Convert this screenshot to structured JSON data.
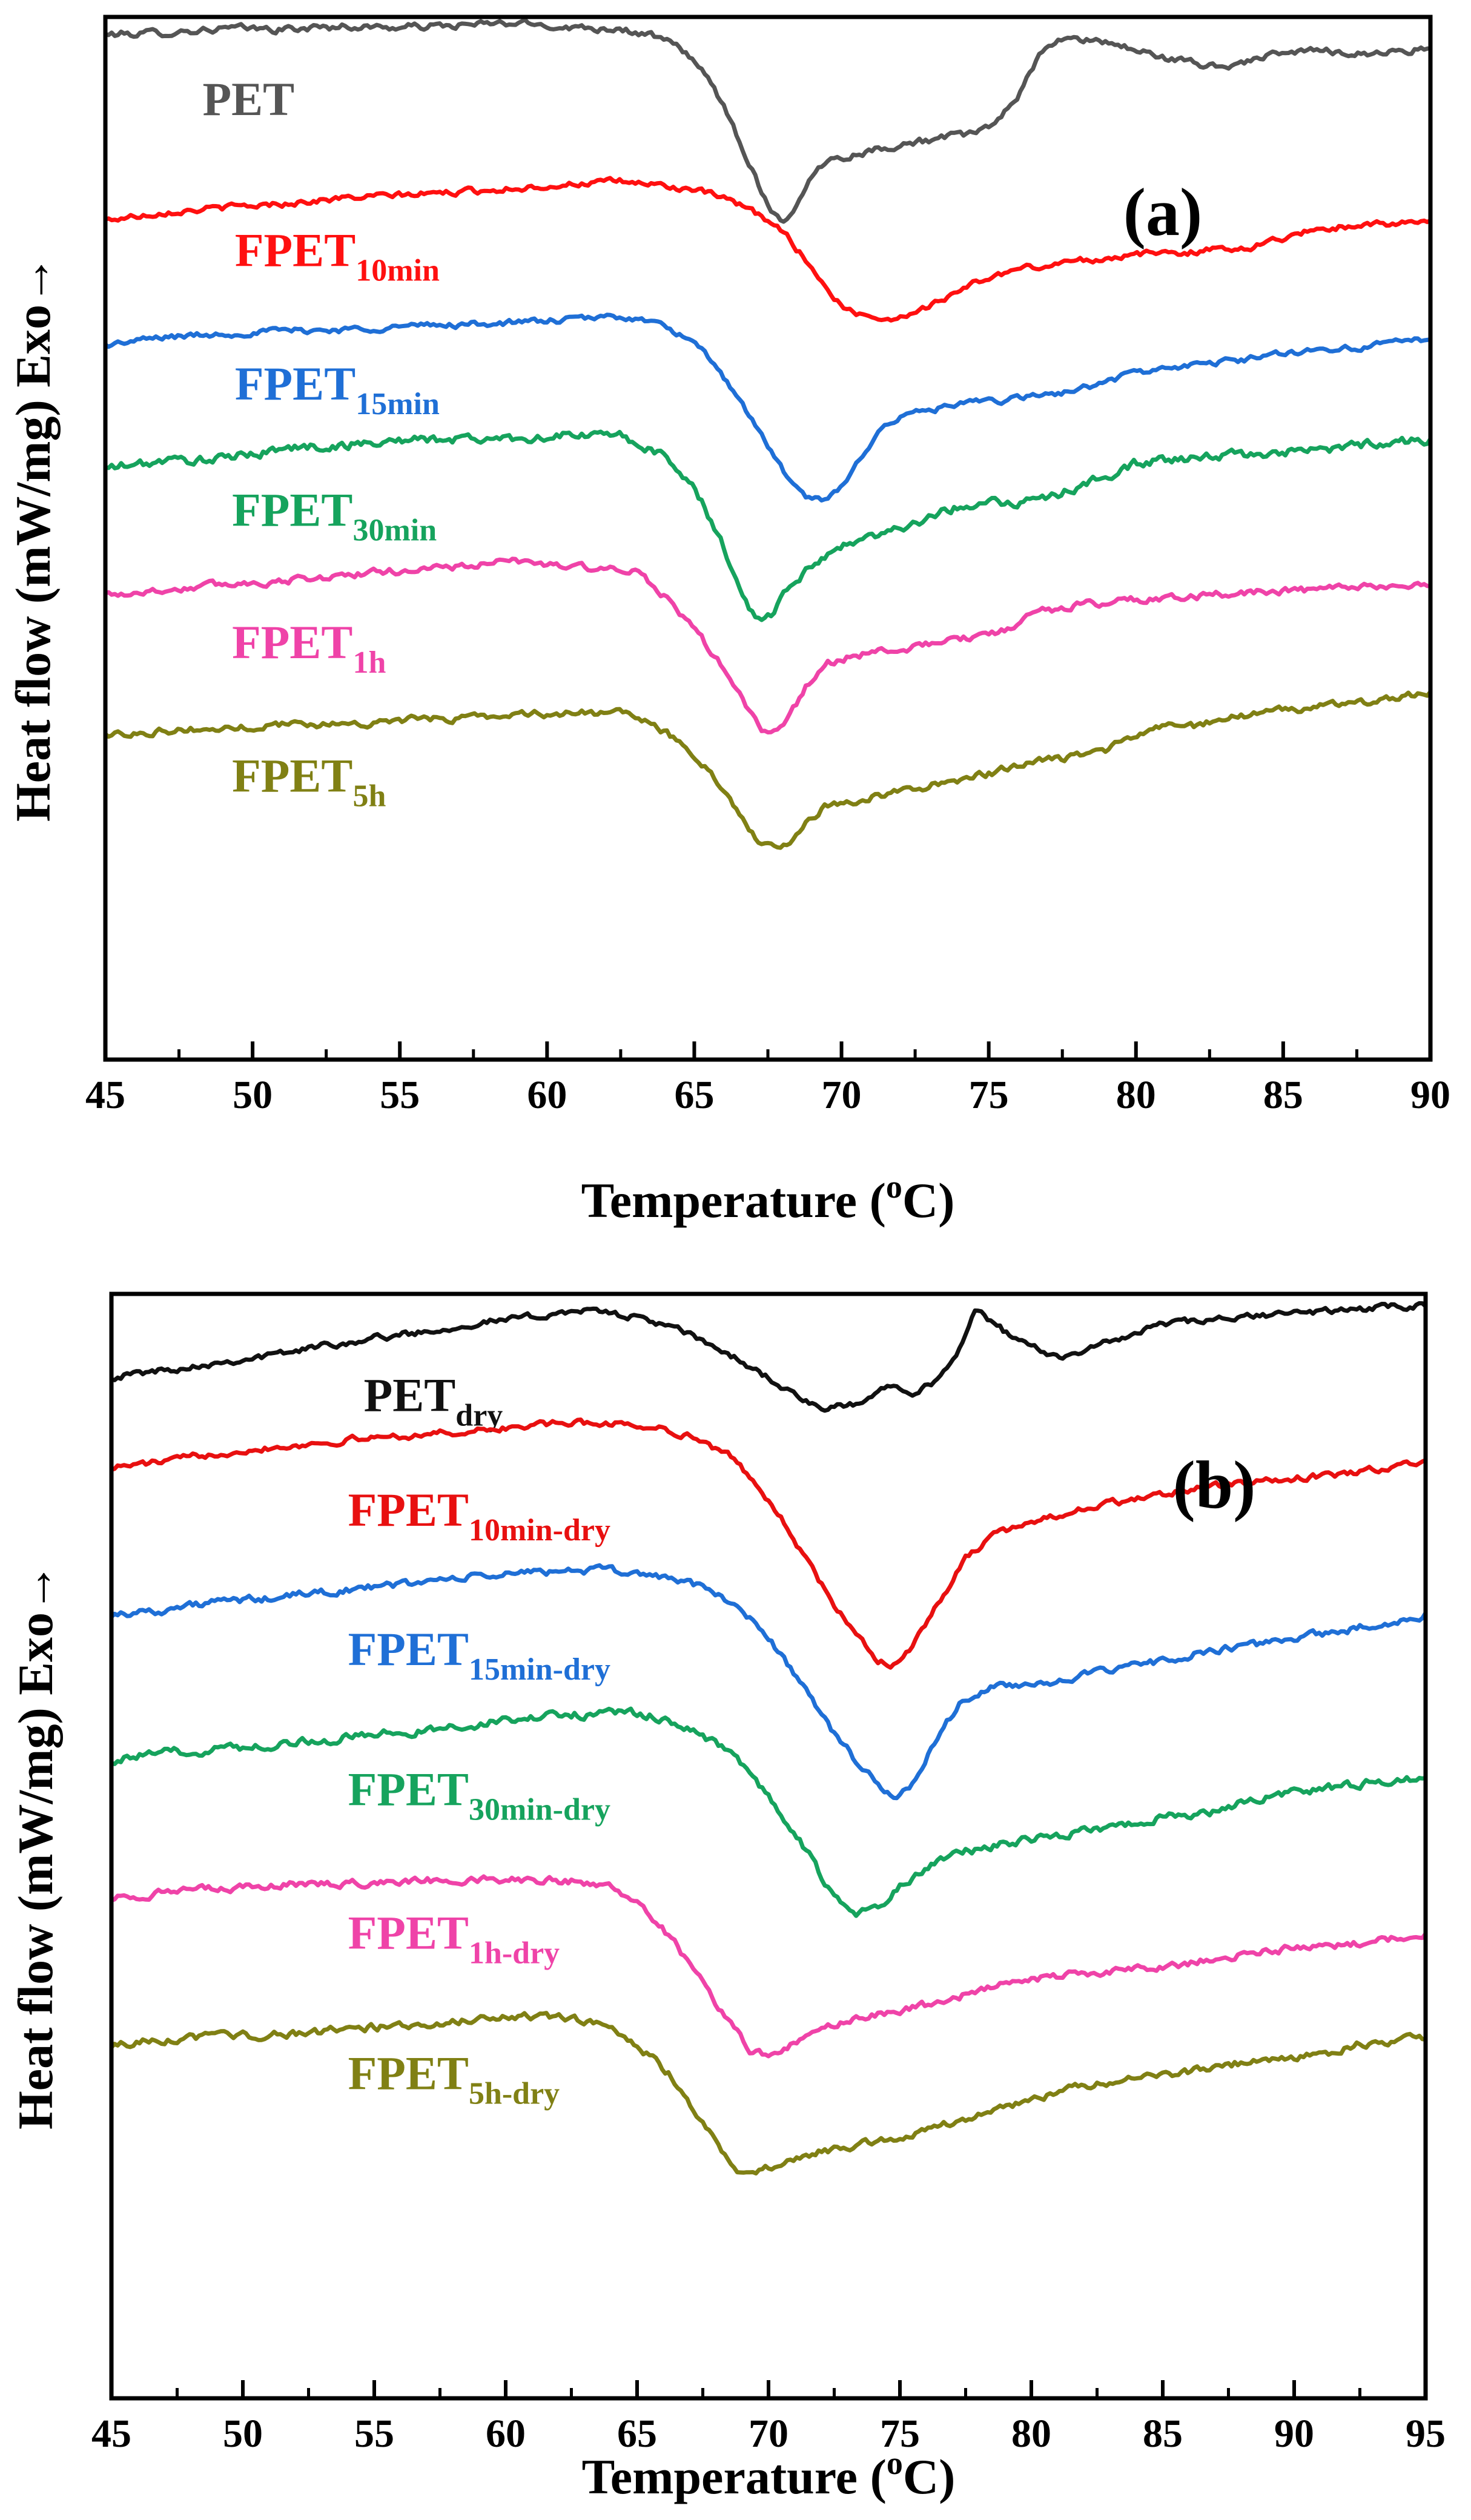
{
  "chart_data": [
    {
      "type": "line",
      "panel_label": "(a)",
      "xlabel": {
        "main": "Temperature (",
        "sup": "o",
        "end": "C)"
      },
      "ylabel": "Heat flow (mW/mg) Exo→",
      "xlim": [
        45,
        90
      ],
      "ylim": [
        0,
        100
      ],
      "x_ticks": [
        45,
        50,
        55,
        60,
        65,
        70,
        75,
        80,
        85,
        90
      ],
      "x_tick_labels": [
        "45",
        "50",
        "55",
        "60",
        "65",
        "70",
        "75",
        "80",
        "85",
        "90"
      ],
      "grid": false,
      "series": [
        {
          "name": "PET",
          "label_main": "PET",
          "label_sub": "",
          "color": "#555555",
          "label_x": 48.3,
          "label_y": 90.6,
          "x": [
            45,
            47,
            49,
            51,
            53,
            55,
            57,
            59,
            61,
            62.5,
            64,
            65,
            66,
            66.8,
            67.4,
            67.9,
            68.3,
            68.8,
            69.5,
            70.5,
            72,
            74,
            75,
            76,
            77,
            78,
            79,
            80,
            81,
            82,
            83,
            84,
            86,
            88,
            90
          ],
          "y": [
            98.3,
            98.5,
            98.9,
            98.8,
            99.1,
            99.0,
            99.2,
            99.4,
            99.0,
            98.9,
            97.8,
            96.0,
            91.5,
            86.5,
            82.5,
            80.5,
            81.0,
            84.0,
            86.3,
            86.9,
            87.8,
            88.6,
            89.2,
            92.5,
            97.5,
            97.9,
            97.6,
            96.8,
            96.1,
            95.5,
            95.2,
            96.0,
            96.8,
            96.5,
            97.0
          ],
          "noise": 0.35
        },
        {
          "name": "FPET10min",
          "label_main": "FPET",
          "label_sub": "10min",
          "color": "#ff1010",
          "label_x": 49.4,
          "label_y": 76.1,
          "x": [
            45,
            47,
            49,
            51,
            53,
            55,
            57,
            59,
            61,
            62.5,
            63.5,
            65,
            66,
            67,
            68,
            69,
            69.6,
            70.2,
            71,
            71.8,
            72.3,
            73,
            74,
            75,
            76,
            78,
            80,
            82,
            84,
            86,
            88,
            90
          ],
          "y": [
            80.5,
            81.3,
            81.7,
            82.1,
            82.6,
            82.9,
            83.2,
            83.6,
            84.0,
            84.2,
            84.0,
            83.4,
            82.6,
            81.3,
            79.5,
            76.0,
            73.5,
            71.8,
            71.3,
            71.0,
            71.6,
            72.3,
            73.8,
            75.0,
            75.8,
            76.6,
            77.2,
            77.5,
            78.0,
            79.6,
            80.2,
            80.2
          ],
          "noise": 0.3
        },
        {
          "name": "FPET15min",
          "label_main": "FPET",
          "label_sub": "15min",
          "color": "#1f6fd6",
          "label_x": 49.4,
          "label_y": 63.3,
          "x": [
            45,
            47,
            49,
            51,
            53,
            55,
            57,
            59,
            61,
            62.5,
            63.5,
            64.5,
            65.5,
            66.5,
            67.5,
            68.3,
            68.9,
            69.5,
            70.2,
            70.8,
            71.5,
            72.5,
            74,
            76,
            78,
            80,
            82,
            84,
            86,
            88,
            90
          ],
          "y": [
            68.5,
            69.3,
            69.6,
            69.9,
            70.0,
            70.3,
            70.5,
            70.7,
            71.0,
            71.3,
            70.8,
            69.6,
            67.3,
            63.5,
            58.8,
            55.2,
            53.8,
            53.5,
            55.5,
            58.5,
            61.0,
            62.1,
            62.8,
            63.4,
            64.2,
            65.9,
            66.6,
            67.3,
            68.1,
            68.4,
            69.2
          ],
          "noise": 0.3
        },
        {
          "name": "FPET30min",
          "label_main": "FPET",
          "label_sub": "30min",
          "color": "#16a35d",
          "label_x": 49.3,
          "label_y": 51.2,
          "x": [
            45,
            47,
            49,
            51,
            53,
            55,
            57,
            59,
            61,
            62.5,
            63.5,
            64.3,
            65,
            65.8,
            66.5,
            67.1,
            67.6,
            68.2,
            69,
            70,
            71,
            72,
            73,
            74,
            75,
            76,
            77,
            78,
            79,
            80,
            82,
            84,
            86,
            88,
            90
          ],
          "y": [
            56.7,
            57.4,
            57.6,
            58.6,
            58.9,
            59.4,
            59.5,
            59.6,
            59.9,
            59.8,
            58.6,
            57.1,
            55.0,
            50.3,
            45.7,
            42.2,
            42.6,
            45.5,
            47.2,
            49.4,
            50.1,
            51.1,
            52.0,
            53.0,
            53.8,
            53.3,
            54.0,
            54.8,
            56.0,
            57.2,
            57.7,
            58.1,
            58.4,
            59.1,
            59.5
          ],
          "noise": 0.45
        },
        {
          "name": "FPET1h",
          "label_main": "FPET",
          "label_sub": "1h",
          "color": "#ef43a8",
          "label_x": 49.3,
          "label_y": 38.5,
          "x": [
            45,
            47,
            49,
            51,
            53,
            55,
            57,
            59,
            60.5,
            62,
            63,
            64,
            65,
            66,
            66.8,
            67.3,
            67.8,
            68.3,
            68.8,
            69.5,
            70.5,
            72,
            73.5,
            75,
            75.8,
            76.5,
            78,
            80,
            82,
            84,
            86,
            88,
            90
          ],
          "y": [
            44.6,
            45.0,
            45.6,
            45.9,
            46.4,
            46.9,
            47.3,
            47.8,
            47.4,
            47.0,
            46.7,
            44.5,
            41.3,
            37.5,
            33.8,
            31.4,
            31.3,
            33.2,
            35.8,
            38.0,
            38.8,
            39.3,
            40.1,
            40.8,
            41.2,
            42.8,
            43.6,
            44.1,
            44.4,
            44.9,
            45.0,
            45.3,
            45.6
          ],
          "noise": 0.35
        },
        {
          "name": "FPET5h",
          "label_main": "FPET",
          "label_sub": "5h",
          "color": "#808014",
          "label_x": 49.3,
          "label_y": 25.7,
          "x": [
            45,
            47,
            49,
            51,
            53,
            55,
            57,
            59,
            61,
            62.5,
            63.5,
            64.5,
            65.5,
            66.3,
            66.8,
            67.3,
            67.8,
            68.3,
            68.8,
            69.5,
            70.5,
            72,
            73.5,
            75,
            76,
            77,
            78,
            79,
            80,
            81,
            82,
            83,
            85,
            87,
            89,
            90
          ],
          "y": [
            31.1,
            31.6,
            31.7,
            32.2,
            32.2,
            32.5,
            32.8,
            33.1,
            33.3,
            33.2,
            32.3,
            30.4,
            28.0,
            24.5,
            22.2,
            20.6,
            20.0,
            20.9,
            22.7,
            24.4,
            24.9,
            25.7,
            26.6,
            27.4,
            28.3,
            28.8,
            29.0,
            29.6,
            31.2,
            32.0,
            32.0,
            32.8,
            33.5,
            34.0,
            34.7,
            35.3
          ],
          "noise": 0.35
        }
      ]
    },
    {
      "type": "line",
      "panel_label": "(b)",
      "xlabel": {
        "main": "Temperature (",
        "sup": "o",
        "end": "C)"
      },
      "ylabel": "Heat flow (mW/mg) Exo→",
      "xlim": [
        45,
        95
      ],
      "ylim": [
        0,
        100
      ],
      "x_ticks": [
        45,
        50,
        55,
        60,
        65,
        70,
        75,
        80,
        85,
        90,
        95
      ],
      "x_tick_labels": [
        "45",
        "50",
        "55",
        "60",
        "65",
        "70",
        "75",
        "80",
        "85",
        "90",
        "95"
      ],
      "grid": false,
      "series": [
        {
          "name": "PETdry",
          "label_main": "PET",
          "label_sub": "dry",
          "color": "#111111",
          "label_x": 54.6,
          "label_y": 89.4,
          "x": [
            45,
            47,
            49,
            51,
            53,
            55,
            57,
            59,
            61,
            62.5,
            64,
            65.5,
            67,
            68.5,
            70,
            71,
            72,
            72.8,
            73.5,
            74.2,
            74.8,
            75.5,
            76.5,
            77.2,
            77.8,
            78.5,
            79.5,
            81,
            83,
            85,
            87,
            89,
            91,
            93,
            95
          ],
          "y": [
            92.5,
            93.1,
            93.8,
            94.4,
            95.3,
            96.0,
            96.6,
            97.4,
            97.9,
            98.5,
            98.3,
            97.6,
            96.3,
            94.5,
            92.4,
            90.8,
            89.5,
            89.8,
            90.0,
            91.2,
            92.0,
            91.2,
            92.2,
            94.5,
            98.6,
            97.5,
            95.6,
            94.3,
            95.6,
            97.3,
            97.6,
            98.1,
            98.4,
            98.7,
            99.0
          ],
          "noise": 0.3
        },
        {
          "name": "FPET10min-dry",
          "label_main": "FPET",
          "label_sub": "10min-dry",
          "color": "#e81010",
          "label_x": 54.0,
          "label_y": 79.0,
          "x": [
            45,
            47,
            49,
            51,
            53,
            55,
            57,
            59,
            61,
            62.5,
            64,
            65.5,
            67,
            68.5,
            69.5,
            70.5,
            71.5,
            72.5,
            73.5,
            74.2,
            74.7,
            75.3,
            76,
            76.8,
            77.5,
            78.5,
            80,
            82,
            84,
            86,
            88,
            90,
            92,
            93.5,
            95
          ],
          "y": [
            84.3,
            84.8,
            85.6,
            86.1,
            86.5,
            87.0,
            87.3,
            87.6,
            88.1,
            88.3,
            88.3,
            88.0,
            87.2,
            85.3,
            83.0,
            79.6,
            75.7,
            71.8,
            68.6,
            66.8,
            66.4,
            67.6,
            70.2,
            73.2,
            76.1,
            78.0,
            79.4,
            80.6,
            81.4,
            82.3,
            82.8,
            83.3,
            83.7,
            84.2,
            85.0
          ],
          "noise": 0.3
        },
        {
          "name": "FPET15min-dry",
          "label_main": "FPET",
          "label_sub": "15min-dry",
          "color": "#1f6fd6",
          "label_x": 54.0,
          "label_y": 66.4,
          "x": [
            45,
            47,
            49,
            51,
            53,
            55,
            57,
            59,
            61,
            62.5,
            64,
            65.5,
            67,
            68.5,
            69.5,
            70.5,
            71.5,
            72.5,
            73.5,
            74.2,
            74.8,
            75.3,
            75.9,
            76.5,
            77.3,
            78.5,
            80,
            82,
            84,
            86,
            88,
            90,
            92,
            94,
            95
          ],
          "y": [
            71.0,
            71.4,
            72.1,
            72.4,
            73.0,
            73.4,
            74.0,
            74.4,
            74.8,
            75.0,
            74.9,
            74.6,
            73.9,
            72.2,
            70.3,
            67.3,
            63.8,
            60.2,
            57.2,
            55.4,
            54.5,
            55.2,
            57.3,
            60.2,
            63.0,
            64.3,
            64.7,
            65.4,
            66.3,
            67.3,
            68.0,
            68.8,
            69.6,
            70.3,
            71.0
          ],
          "noise": 0.35
        },
        {
          "name": "FPET30min-dry",
          "label_main": "FPET",
          "label_sub": "30min-dry",
          "color": "#16a35d",
          "label_x": 54.0,
          "label_y": 53.7,
          "x": [
            45,
            47,
            49,
            51,
            53,
            55,
            57,
            59,
            61,
            62.5,
            64,
            65.5,
            67,
            68.5,
            69.5,
            70.5,
            71.5,
            72.3,
            72.9,
            73.4,
            74.2,
            75,
            76,
            77.5,
            79,
            81,
            83,
            85,
            87,
            89,
            91,
            93,
            95
          ],
          "y": [
            57.8,
            58.4,
            58.8,
            59.2,
            59.6,
            60.1,
            60.5,
            61.1,
            61.6,
            61.9,
            62.1,
            61.8,
            60.7,
            58.6,
            56.1,
            52.6,
            49.3,
            46.2,
            44.2,
            43.9,
            44.4,
            46.4,
            48.0,
            49.5,
            50.3,
            51.0,
            51.8,
            52.6,
            53.2,
            54.6,
            55.2,
            55.8,
            56.3
          ],
          "noise": 0.4
        },
        {
          "name": "FPET1h-dry",
          "label_main": "FPET",
          "label_sub": "1h-dry",
          "color": "#ef43a8",
          "label_x": 54.0,
          "label_y": 40.7,
          "x": [
            45,
            47,
            49,
            51,
            53,
            55,
            57,
            59,
            61,
            62.5,
            64,
            65.3,
            66.5,
            67.5,
            68.5,
            69.3,
            70,
            70.6,
            71.2,
            72,
            73,
            74.5,
            76,
            77.5,
            79,
            81,
            83,
            85,
            87,
            89,
            91,
            93,
            95
          ],
          "y": [
            45.3,
            45.8,
            46.1,
            46.4,
            46.6,
            46.7,
            46.9,
            47.0,
            47.0,
            46.8,
            46.4,
            44.4,
            41.1,
            37.5,
            33.9,
            31.6,
            30.9,
            31.5,
            32.6,
            33.4,
            34.2,
            34.9,
            35.6,
            36.6,
            37.6,
            38.2,
            38.6,
            39.1,
            39.8,
            40.5,
            41.0,
            41.3,
            42.0
          ],
          "noise": 0.35
        },
        {
          "name": "FPET5h-dry",
          "label_main": "FPET",
          "label_sub": "5h-dry",
          "color": "#808014",
          "label_x": 54.0,
          "label_y": 28.0,
          "x": [
            45,
            47,
            49,
            51,
            53,
            55,
            57,
            59,
            60.5,
            62,
            63.5,
            65,
            66.3,
            67.3,
            68.2,
            68.8,
            69.3,
            70,
            71,
            72.5,
            74,
            75.5,
            77,
            78.5,
            80,
            82,
            84,
            86,
            88,
            90,
            91.5,
            92.5,
            94,
            95
          ],
          "y": [
            32.0,
            32.5,
            32.7,
            32.9,
            33.2,
            33.6,
            33.9,
            34.3,
            34.6,
            34.5,
            34.0,
            32.1,
            29.2,
            25.7,
            22.5,
            20.8,
            20.4,
            20.9,
            21.8,
            22.6,
            23.3,
            24.0,
            24.9,
            26.0,
            27.1,
            28.4,
            28.9,
            29.6,
            30.4,
            30.9,
            31.3,
            32.1,
            32.4,
            32.6
          ],
          "noise": 0.35
        }
      ]
    }
  ]
}
